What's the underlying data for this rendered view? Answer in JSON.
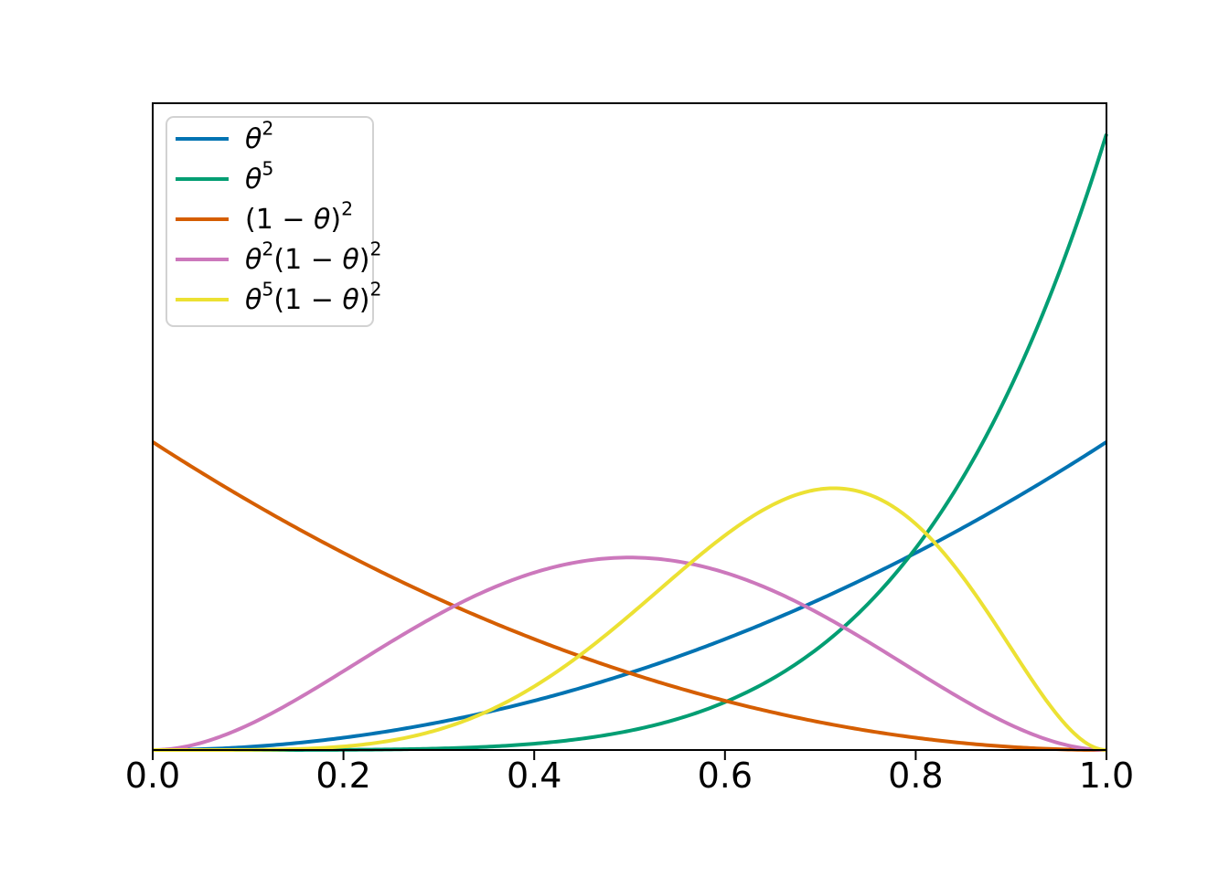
{
  "figure": {
    "background": "#ffffff",
    "spine_color": "#000000",
    "tick_label_color": "#000000"
  },
  "axes": {
    "x_tick_labels": [
      "0.0",
      "0.2",
      "0.4",
      "0.6",
      "0.8",
      "1.0"
    ],
    "y_tick_labels": []
  },
  "legend": {
    "position": "upper left",
    "border_color": "#d2d2d2",
    "background": "#ffffff"
  },
  "chart_data": {
    "type": "line",
    "title": "",
    "xlabel": "",
    "ylabel": "",
    "xlim": [
      0.0,
      1.0
    ],
    "ylim": [
      0.0,
      6.3
    ],
    "x_ticks": [
      0.0,
      0.2,
      0.4,
      0.6,
      0.8,
      1.0
    ],
    "y_ticks": [],
    "grid": false,
    "legend_position": "upper left",
    "x_samples": [
      0,
      0.05,
      0.1,
      0.15,
      0.2,
      0.25,
      0.3,
      0.35,
      0.4,
      0.45,
      0.5,
      0.55,
      0.6,
      0.65,
      0.7,
      0.75,
      0.8,
      0.85,
      0.9,
      0.95,
      1
    ],
    "series": [
      {
        "label": "θ²",
        "color": "#0173b2",
        "scaled_formula": "y = 3·θ^2 (Beta(3,1) pdf)",
        "coef": 3,
        "pow_theta": 2,
        "pow_one_minus_theta": 0,
        "values": [
          0,
          0.0075,
          0.03,
          0.0675,
          0.12,
          0.1875,
          0.27,
          0.3675,
          0.48,
          0.6075,
          0.75,
          0.9075,
          1.08,
          1.2675,
          1.47,
          1.6875,
          1.92,
          2.1675,
          2.43,
          2.7075,
          3
        ]
      },
      {
        "label": "θ⁵",
        "color": "#029e73",
        "scaled_formula": "y = 6·θ^5 (Beta(6,1) pdf)",
        "coef": 6,
        "pow_theta": 5,
        "pow_one_minus_theta": 0,
        "values": [
          0,
          0,
          0.0001,
          0.0005,
          0.0019,
          0.0059,
          0.0146,
          0.0315,
          0.0614,
          0.1107,
          0.1875,
          0.302,
          0.4666,
          0.6962,
          1.0084,
          1.4238,
          1.9661,
          2.6622,
          3.5429,
          4.6427,
          6
        ]
      },
      {
        "label": "(1 − θ)²",
        "color": "#d55e00",
        "scaled_formula": "y = 3·(1−θ)^2 (Beta(1,3) pdf)",
        "coef": 3,
        "pow_theta": 0,
        "pow_one_minus_theta": 2,
        "values": [
          3,
          2.7075,
          2.43,
          2.1675,
          1.92,
          1.6875,
          1.47,
          1.2675,
          1.08,
          0.9075,
          0.75,
          0.6075,
          0.48,
          0.3675,
          0.27,
          0.1875,
          0.12,
          0.0675,
          0.03,
          0.0075,
          0
        ]
      },
      {
        "label": "θ²(1 − θ)²",
        "color": "#cc78bc",
        "scaled_formula": "y = 30·θ^2·(1−θ)^2 (Beta(3,3) pdf)",
        "coef": 30,
        "pow_theta": 2,
        "pow_one_minus_theta": 2,
        "values": [
          0,
          0.0677,
          0.243,
          0.4877,
          0.768,
          1.0547,
          1.323,
          1.5527,
          1.728,
          1.8377,
          1.875,
          1.8377,
          1.728,
          1.5527,
          1.323,
          1.0547,
          0.768,
          0.4877,
          0.243,
          0.0677,
          0
        ]
      },
      {
        "label": "θ⁵(1 − θ)²",
        "color": "#ece133",
        "scaled_formula": "y = 168·θ^5·(1−θ)^2 (Beta(6,3) pdf)",
        "coef": 168,
        "pow_theta": 5,
        "pow_one_minus_theta": 2,
        "values": [
          0,
          0,
          0.0014,
          0.0092,
          0.0344,
          0.0923,
          0.2,
          0.3728,
          0.6194,
          0.9378,
          1.3125,
          1.7124,
          2.0902,
          2.3879,
          2.5412,
          2.4917,
          2.202,
          1.6772,
          0.992,
          0.325,
          0
        ]
      }
    ]
  }
}
